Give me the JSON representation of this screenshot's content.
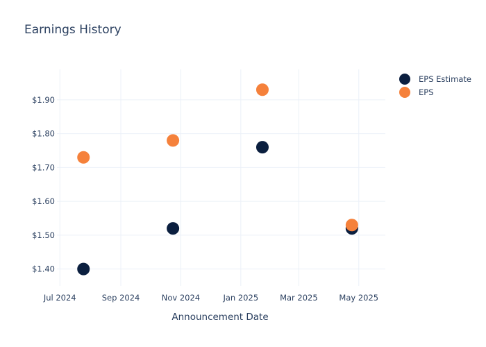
{
  "chart_data": {
    "type": "scatter",
    "title": "Earnings History",
    "xlabel": "Announcement Date",
    "ylabel": "",
    "x_range": [
      "2024-06-28",
      "2025-05-28"
    ],
    "ylim": [
      1.35,
      1.99
    ],
    "x_ticks": [
      {
        "date": "2024-07-01",
        "label": "Jul 2024"
      },
      {
        "date": "2024-09-01",
        "label": "Sep 2024"
      },
      {
        "date": "2024-11-01",
        "label": "Nov 2024"
      },
      {
        "date": "2025-01-01",
        "label": "Jan 2025"
      },
      {
        "date": "2025-03-01",
        "label": "Mar 2025"
      },
      {
        "date": "2025-05-01",
        "label": "May 2025"
      }
    ],
    "y_ticks": [
      {
        "value": 1.4,
        "label": "$1.40"
      },
      {
        "value": 1.5,
        "label": "$1.50"
      },
      {
        "value": 1.6,
        "label": "$1.60"
      },
      {
        "value": 1.7,
        "label": "$1.70"
      },
      {
        "value": 1.8,
        "label": "$1.80"
      },
      {
        "value": 1.9,
        "label": "$1.90"
      }
    ],
    "grid": true,
    "legend_position": "top-right",
    "series": [
      {
        "name": "EPS Estimate",
        "color": "#0b1f3f",
        "points": [
          {
            "x": "2024-07-25",
            "y": 1.4
          },
          {
            "x": "2024-10-24",
            "y": 1.52
          },
          {
            "x": "2025-01-23",
            "y": 1.76
          },
          {
            "x": "2025-04-24",
            "y": 1.52
          }
        ]
      },
      {
        "name": "EPS",
        "color": "#f5813b",
        "points": [
          {
            "x": "2024-07-25",
            "y": 1.73
          },
          {
            "x": "2024-10-24",
            "y": 1.78
          },
          {
            "x": "2025-01-23",
            "y": 1.93
          },
          {
            "x": "2025-04-24",
            "y": 1.53
          }
        ]
      }
    ]
  }
}
